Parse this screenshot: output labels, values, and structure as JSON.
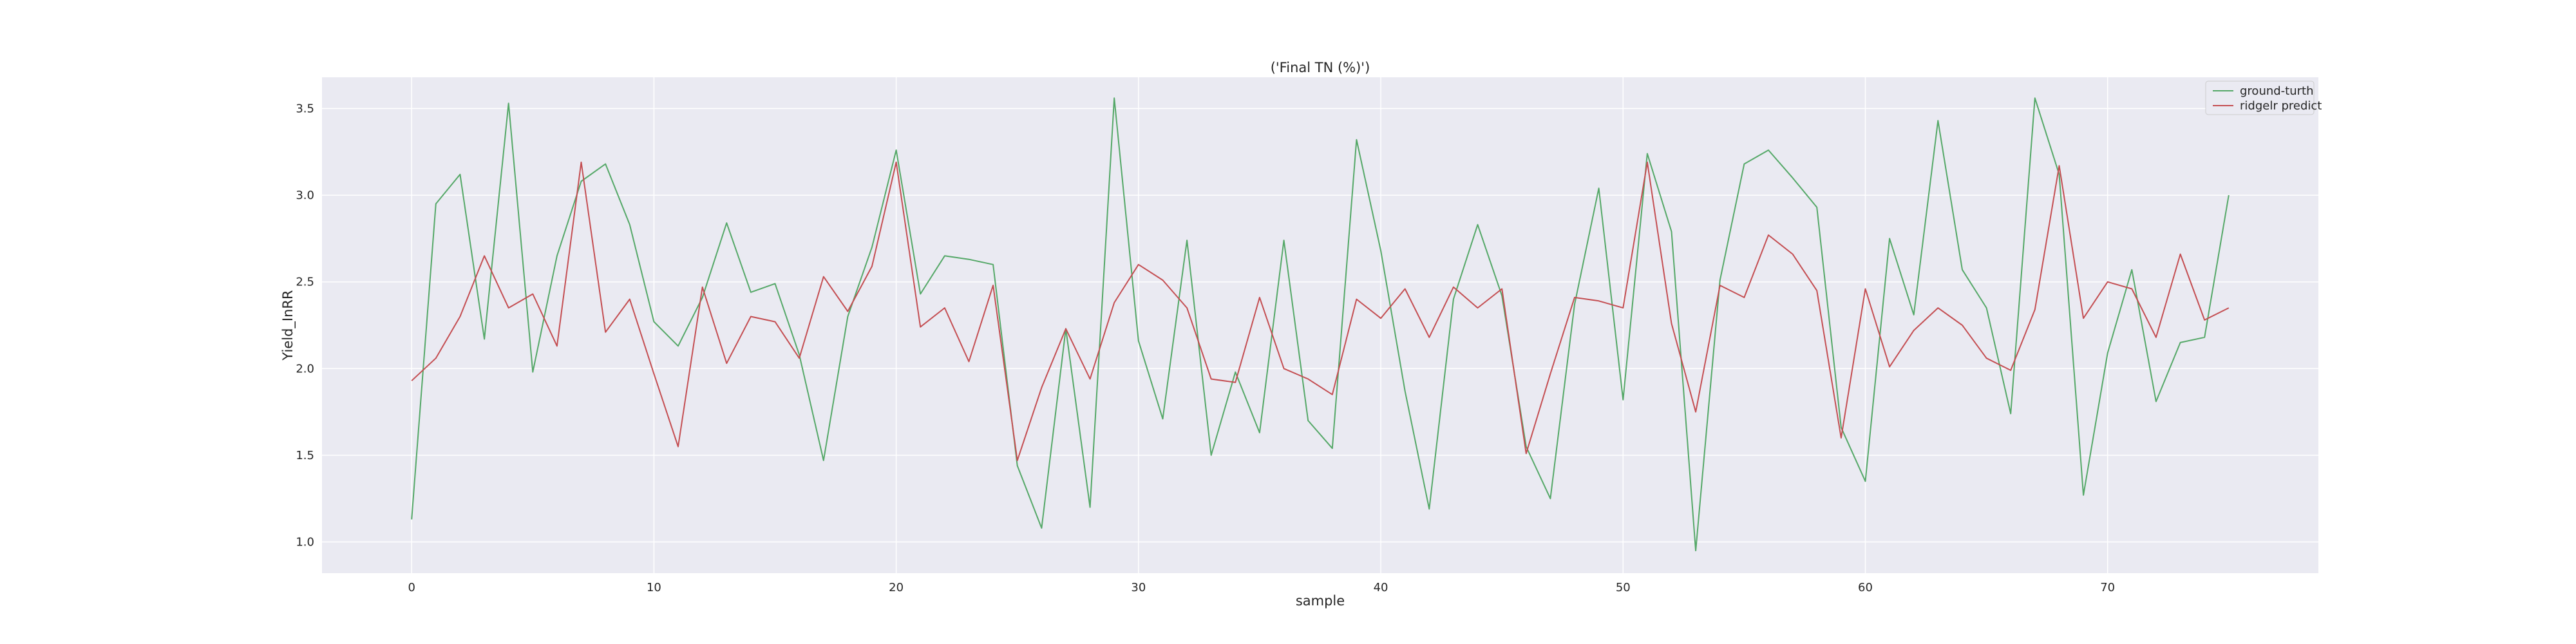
{
  "chart_data": {
    "type": "line",
    "title": "('Final TN (%)')",
    "xlabel": "sample",
    "ylabel": "Yield_InRR",
    "xlim": [
      -3.7,
      78.7
    ],
    "ylim": [
      0.82,
      3.68
    ],
    "xticks": [
      0,
      10,
      20,
      30,
      40,
      50,
      60,
      70
    ],
    "yticks": [
      1.0,
      1.5,
      2.0,
      2.5,
      3.0,
      3.5
    ],
    "ytick_labels": [
      "1.0",
      "1.5",
      "2.0",
      "2.5",
      "3.0",
      "3.5"
    ],
    "grid": true,
    "legend_position": "top-right",
    "x": [
      0,
      1,
      2,
      3,
      4,
      5,
      6,
      7,
      8,
      9,
      10,
      11,
      12,
      13,
      14,
      15,
      16,
      17,
      18,
      19,
      20,
      21,
      22,
      23,
      24,
      25,
      26,
      27,
      28,
      29,
      30,
      31,
      32,
      33,
      34,
      35,
      36,
      37,
      38,
      39,
      40,
      41,
      42,
      43,
      44,
      45,
      46,
      47,
      48,
      49,
      50,
      51,
      52,
      53,
      54,
      55,
      56,
      57,
      58,
      59,
      60,
      61,
      62,
      63,
      64,
      65,
      66,
      67,
      68,
      69,
      70,
      71,
      72,
      73,
      74,
      75
    ],
    "series": [
      {
        "name": "ground-turth",
        "color": "#55a868",
        "values": [
          1.13,
          2.95,
          3.12,
          2.17,
          3.53,
          1.98,
          2.65,
          3.08,
          3.18,
          2.83,
          2.27,
          2.13,
          2.41,
          2.84,
          2.44,
          2.49,
          2.08,
          1.47,
          2.3,
          2.7,
          3.26,
          2.43,
          2.65,
          2.63,
          2.6,
          1.44,
          1.08,
          2.23,
          1.2,
          3.56,
          2.16,
          1.71,
          2.74,
          1.5,
          1.98,
          1.63,
          2.74,
          1.7,
          1.54,
          3.32,
          2.68,
          1.87,
          1.19,
          2.4,
          2.83,
          2.42,
          1.55,
          1.25,
          2.37,
          3.04,
          1.82,
          3.24,
          2.79,
          0.95,
          2.51,
          3.18,
          3.26,
          3.1,
          2.93,
          1.66,
          1.35,
          2.75,
          2.31,
          3.43,
          2.57,
          2.35,
          1.74,
          3.56,
          3.12,
          1.27,
          2.09,
          2.57,
          1.81,
          2.15,
          2.18,
          3.0
        ]
      },
      {
        "name": "ridgelr predict",
        "color": "#c44e52",
        "values": [
          1.93,
          2.06,
          2.3,
          2.65,
          2.35,
          2.43,
          2.13,
          3.19,
          2.21,
          2.4,
          1.97,
          1.55,
          2.47,
          2.03,
          2.3,
          2.27,
          2.06,
          2.53,
          2.33,
          2.59,
          3.19,
          2.24,
          2.35,
          2.04,
          2.48,
          1.47,
          1.89,
          2.23,
          1.94,
          2.38,
          2.6,
          2.51,
          2.35,
          1.94,
          1.92,
          2.41,
          2.0,
          1.94,
          1.85,
          2.4,
          2.29,
          2.46,
          2.18,
          2.47,
          2.35,
          2.46,
          1.51,
          1.97,
          2.41,
          2.39,
          2.35,
          3.19,
          2.26,
          1.75,
          2.48,
          2.41,
          2.77,
          2.66,
          2.45,
          1.6,
          2.46,
          2.01,
          2.22,
          2.35,
          2.25,
          2.06,
          1.99,
          2.34,
          3.17,
          2.29,
          2.5,
          2.46,
          2.18,
          2.66,
          2.28,
          2.35
        ]
      }
    ]
  }
}
